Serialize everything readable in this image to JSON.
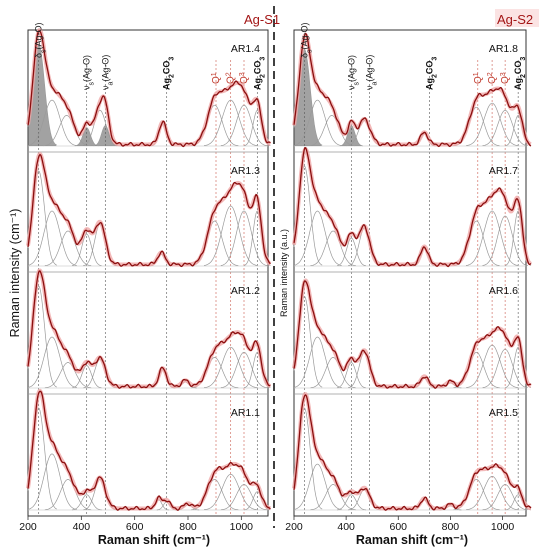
{
  "figure": {
    "left_label": "Ag-S1",
    "right_label": "Ag-S2",
    "ylabel_left": "Raman intensity (cm⁻¹)",
    "ylabel_right": "Raman intensity (a.u.)",
    "xlabel": "Raman shift (cm⁻¹)"
  },
  "annotations": [
    {
      "text": "δs(Ag-O)",
      "main": "δ",
      "sub": "s",
      "rest": "(Ag-O)",
      "x": 240,
      "color": "#222222"
    },
    {
      "text": "νs(Ag-O)",
      "main": "ν",
      "sub": "s",
      "rest": "(Ag-O)",
      "x": 420,
      "color": "#222222"
    },
    {
      "text": "νa(Ag-O)",
      "main": "ν",
      "sub": "a",
      "rest": "(Ag-O)",
      "x": 490,
      "color": "#222222"
    },
    {
      "text": "Ag2CO3",
      "main": "Ag",
      "sub": "2",
      "rest": "CO",
      "sub2": "3",
      "x": 720,
      "color": "#111111",
      "bold": true
    },
    {
      "text": "Q1",
      "main": "Q",
      "sup": "1",
      "x": 905,
      "color": "#c0392b"
    },
    {
      "text": "Q2",
      "main": "Q",
      "sup": "2",
      "x": 960,
      "color": "#c0392b"
    },
    {
      "text": "Q3",
      "main": "Q",
      "sup": "3",
      "x": 1010,
      "color": "#c0392b"
    },
    {
      "text": "Ag2CO3",
      "main": "Ag",
      "sub": "2",
      "rest": "CO",
      "sub2": "3",
      "x": 1060,
      "color": "#111111",
      "bold": true
    }
  ],
  "chart_data": {
    "type": "line",
    "xlabel": "Raman shift (cm⁻¹)",
    "xlim": [
      200,
      1120
    ],
    "xticks": [
      200,
      400,
      600,
      800,
      1000
    ],
    "vlines": [
      240,
      420,
      490,
      720,
      905,
      960,
      1010,
      1060
    ],
    "panels": [
      {
        "group": "Ag-S1",
        "label": "AR1.4",
        "peaks": [
          [
            240,
            1.0,
            22
          ],
          [
            290,
            0.45,
            30
          ],
          [
            345,
            0.3,
            28
          ],
          [
            420,
            0.18,
            14
          ],
          [
            470,
            0.35,
            22
          ],
          [
            490,
            0.2,
            14
          ],
          [
            705,
            0.22,
            14
          ],
          [
            900,
            0.4,
            28
          ],
          [
            960,
            0.45,
            32
          ],
          [
            1010,
            0.4,
            28
          ],
          [
            1060,
            0.35,
            16
          ]
        ]
      },
      {
        "group": "Ag-S1",
        "label": "AR1.3",
        "peaks": [
          [
            240,
            0.95,
            22
          ],
          [
            290,
            0.55,
            30
          ],
          [
            350,
            0.35,
            28
          ],
          [
            420,
            0.32,
            18
          ],
          [
            470,
            0.42,
            20
          ],
          [
            700,
            0.12,
            14
          ],
          [
            900,
            0.45,
            28
          ],
          [
            960,
            0.6,
            32
          ],
          [
            1010,
            0.55,
            28
          ],
          [
            1060,
            0.55,
            16
          ]
        ]
      },
      {
        "group": "Ag-S1",
        "label": "AR1.2",
        "peaks": [
          [
            240,
            1.0,
            22
          ],
          [
            290,
            0.5,
            30
          ],
          [
            350,
            0.25,
            28
          ],
          [
            420,
            0.22,
            18
          ],
          [
            470,
            0.28,
            20
          ],
          [
            705,
            0.18,
            14
          ],
          [
            790,
            0.06,
            14
          ],
          [
            900,
            0.3,
            28
          ],
          [
            960,
            0.4,
            32
          ],
          [
            1010,
            0.35,
            28
          ],
          [
            1060,
            0.35,
            16
          ]
        ]
      },
      {
        "group": "Ag-S1",
        "label": "AR1.1",
        "peaks": [
          [
            240,
            1.0,
            22
          ],
          [
            290,
            0.55,
            30
          ],
          [
            350,
            0.3,
            28
          ],
          [
            420,
            0.15,
            18
          ],
          [
            470,
            0.3,
            20
          ],
          [
            690,
            0.1,
            12
          ],
          [
            720,
            0.08,
            12
          ],
          [
            800,
            0.05,
            14
          ],
          [
            900,
            0.3,
            28
          ],
          [
            960,
            0.35,
            32
          ],
          [
            1010,
            0.25,
            28
          ],
          [
            1060,
            0.18,
            16
          ]
        ]
      },
      {
        "group": "Ag-S2",
        "label": "AR1.8",
        "peaks": [
          [
            240,
            0.95,
            22
          ],
          [
            290,
            0.45,
            30
          ],
          [
            345,
            0.3,
            28
          ],
          [
            420,
            0.2,
            14
          ],
          [
            470,
            0.25,
            22
          ],
          [
            700,
            0.12,
            14
          ],
          [
            900,
            0.38,
            28
          ],
          [
            960,
            0.42,
            32
          ],
          [
            1010,
            0.35,
            28
          ],
          [
            1060,
            0.3,
            16
          ]
        ]
      },
      {
        "group": "Ag-S2",
        "label": "AR1.7",
        "peaks": [
          [
            240,
            1.0,
            22
          ],
          [
            290,
            0.55,
            30
          ],
          [
            350,
            0.35,
            28
          ],
          [
            420,
            0.28,
            18
          ],
          [
            470,
            0.38,
            20
          ],
          [
            700,
            0.18,
            14
          ],
          [
            900,
            0.45,
            28
          ],
          [
            960,
            0.55,
            32
          ],
          [
            1010,
            0.5,
            28
          ],
          [
            1060,
            0.55,
            16
          ]
        ]
      },
      {
        "group": "Ag-S2",
        "label": "AR1.6",
        "peaks": [
          [
            240,
            0.9,
            22
          ],
          [
            290,
            0.5,
            30
          ],
          [
            350,
            0.3,
            28
          ],
          [
            420,
            0.25,
            18
          ],
          [
            470,
            0.35,
            20
          ],
          [
            700,
            0.1,
            14
          ],
          [
            800,
            0.05,
            14
          ],
          [
            900,
            0.35,
            28
          ],
          [
            960,
            0.42,
            32
          ],
          [
            1010,
            0.38,
            28
          ],
          [
            1060,
            0.4,
            16
          ]
        ]
      },
      {
        "group": "Ag-S2",
        "label": "AR1.5",
        "peaks": [
          [
            240,
            1.0,
            22
          ],
          [
            290,
            0.45,
            30
          ],
          [
            350,
            0.25,
            28
          ],
          [
            420,
            0.15,
            18
          ],
          [
            470,
            0.2,
            20
          ],
          [
            700,
            0.1,
            14
          ],
          [
            800,
            0.04,
            14
          ],
          [
            900,
            0.3,
            28
          ],
          [
            960,
            0.33,
            32
          ],
          [
            1010,
            0.25,
            28
          ],
          [
            1060,
            0.15,
            16
          ]
        ]
      }
    ]
  },
  "colors": {
    "spectrum": "#8b0e0e",
    "envelope": "#f0a8a8",
    "component": "#9a9a9a",
    "shaded": "#555555",
    "vline": "#555555",
    "accent": "#c0392b"
  }
}
